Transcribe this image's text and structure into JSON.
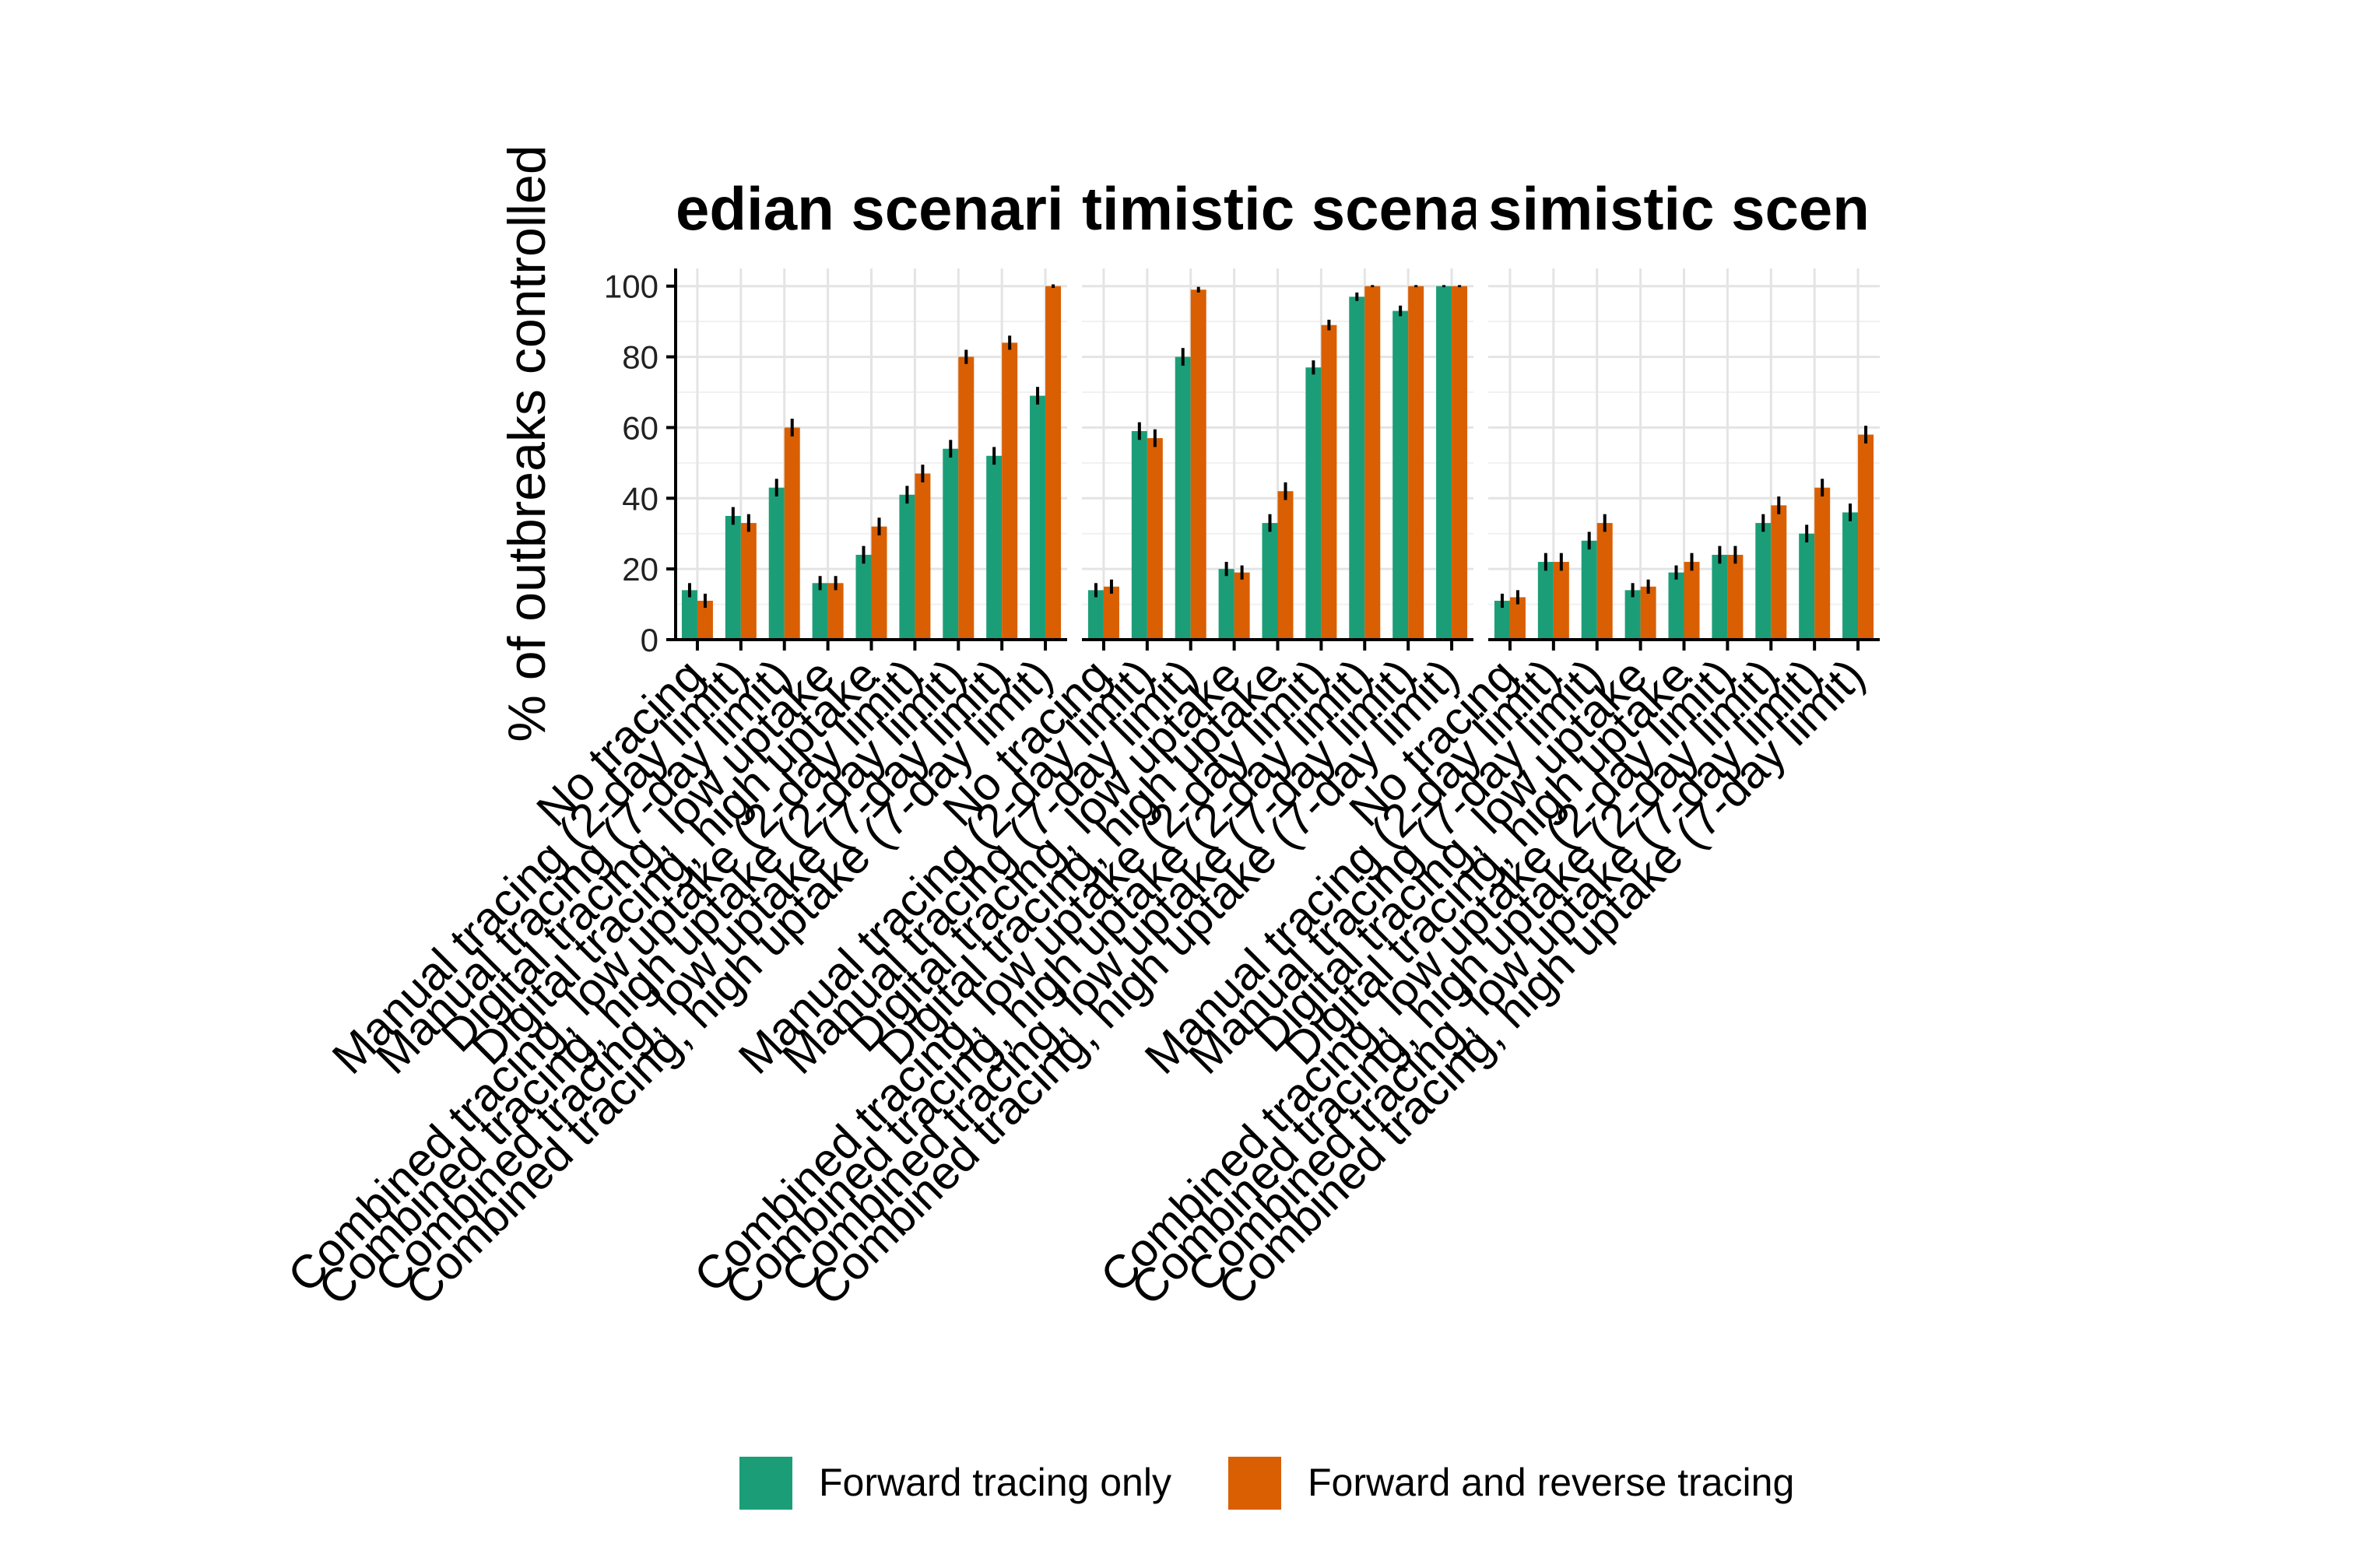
{
  "chart_data": {
    "type": "bar",
    "ylabel": "% of outbreaks controlled",
    "ylim": [
      0,
      105
    ],
    "yticks": [
      0,
      20,
      40,
      60,
      80,
      100
    ],
    "grid": true,
    "legend_position": "bottom",
    "categories": [
      "No tracing",
      "Manual tracing (2-day limit)",
      "Manual tracing (7-day limit)",
      "Digital tracing, low uptake",
      "Digital tracing, high uptake",
      "Combined tracing, low uptake (2-day limit)",
      "Combined tracing, high uptake (2-day limit)",
      "Combined tracing, low uptake (7-day limit)",
      "Combined tracing, high uptake (7-day limit)"
    ],
    "series_legend": [
      {
        "name": "Forward tracing only",
        "color": "#1b9e77"
      },
      {
        "name": "Forward and reverse tracing",
        "color": "#d95f02"
      }
    ],
    "facets": [
      {
        "title": "edian scenari",
        "series": [
          {
            "values": [
              14,
              35,
              43,
              16,
              24,
              41,
              54,
              52,
              69
            ],
            "errors": [
              2,
              2.5,
              2.5,
              2,
              2.5,
              2.5,
              2.5,
              2.5,
              2.5
            ]
          },
          {
            "values": [
              11,
              33,
              60,
              16,
              32,
              47,
              80,
              84,
              100
            ],
            "errors": [
              2,
              2.5,
              2.5,
              2,
              2.5,
              2.5,
              2,
              2,
              0.5
            ]
          }
        ]
      },
      {
        "title": "timistic scena",
        "series": [
          {
            "values": [
              14,
              59,
              80,
              20,
              33,
              77,
              97,
              93,
              100
            ],
            "errors": [
              2,
              2.5,
              2.5,
              2,
              2.5,
              2,
              1.2,
              1.5,
              0.3
            ]
          },
          {
            "values": [
              15,
              57,
              99,
              19,
              42,
              89,
              100,
              100,
              100
            ],
            "errors": [
              2,
              2.5,
              0.8,
              2,
              2.5,
              1.5,
              0.3,
              0.3,
              0.3
            ]
          }
        ]
      },
      {
        "title": "simistic scen",
        "series": [
          {
            "values": [
              11,
              22,
              28,
              14,
              19,
              24,
              33,
              30,
              36
            ],
            "errors": [
              2,
              2.5,
              2.5,
              2,
              2,
              2.5,
              2.5,
              2.5,
              2.5
            ]
          },
          {
            "values": [
              12,
              22,
              33,
              15,
              22,
              24,
              38,
              43,
              58
            ],
            "errors": [
              2,
              2.5,
              2.5,
              2,
              2.5,
              2.5,
              2.5,
              2.5,
              2.5
            ]
          }
        ]
      }
    ]
  }
}
